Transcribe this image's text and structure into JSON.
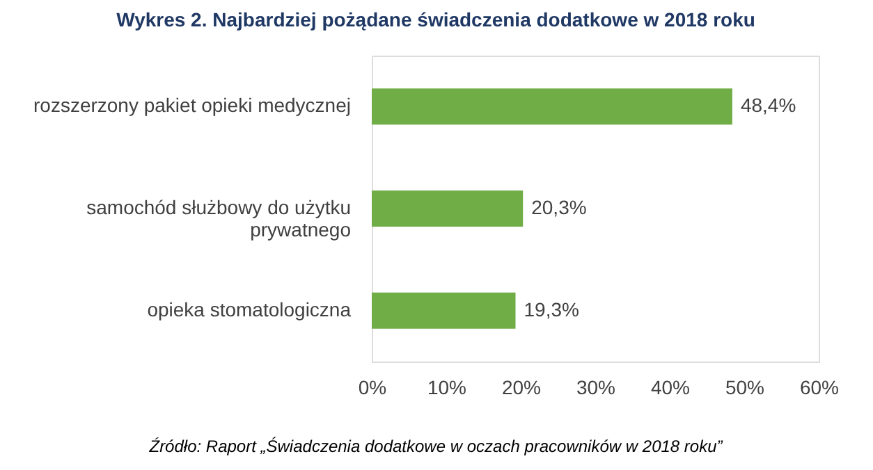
{
  "chart_data": {
    "type": "bar",
    "orientation": "horizontal",
    "title": "Wykres 2. Najbardziej pożądane świadczenia dodatkowe w 2018 roku",
    "categories": [
      "rozszerzony pakiet opieki medycznej",
      "samochód służbowy do użytku prywatnego",
      "opieka stomatologiczna"
    ],
    "values": [
      48.4,
      20.3,
      19.3
    ],
    "color": "#70ad47",
    "value_labels": [
      "48,4%",
      "20,3%",
      "19,3%"
    ],
    "xlim": [
      0,
      60
    ],
    "xticks": [
      {
        "value": 0,
        "label": "0%"
      },
      {
        "value": 10,
        "label": "10%"
      },
      {
        "value": 20,
        "label": "20%"
      },
      {
        "value": 30,
        "label": "30%"
      },
      {
        "value": 40,
        "label": "40%"
      },
      {
        "value": 50,
        "label": "50%"
      },
      {
        "value": 60,
        "label": "60%"
      }
    ],
    "grid": false,
    "annotations": [
      "Źródło: Raport „Świadczenia dodatkowe w oczach pracowników w 2018 roku”"
    ]
  }
}
